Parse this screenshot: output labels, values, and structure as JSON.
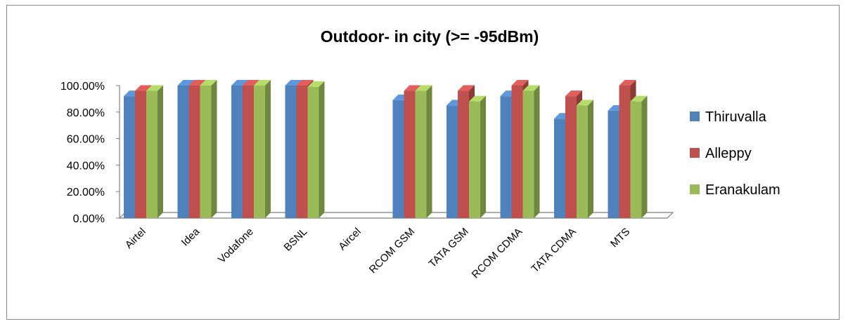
{
  "chart_data": {
    "type": "bar",
    "title": "Outdoor- in city (>= -95dBm)",
    "xlabel": "",
    "ylabel": "",
    "ylim": [
      0,
      1
    ],
    "yticks": [
      "0.00%",
      "20.00%",
      "40.00%",
      "60.00%",
      "80.00%",
      "100.00%"
    ],
    "categories": [
      "Airtel",
      "Idea",
      "Vodafone",
      "BSNL",
      "Aircel",
      "RCOM GSM",
      "TATA GSM",
      "RCOM CDMA",
      "TATA CDMA",
      "MTS"
    ],
    "series": [
      {
        "name": "Thiruvalla",
        "color": "#4f81bd",
        "values": [
          0.92,
          1.0,
          1.0,
          1.0,
          0,
          0.89,
          0.85,
          0.92,
          0.75,
          0.81
        ]
      },
      {
        "name": "Alleppy",
        "color": "#c0504d",
        "values": [
          0.96,
          1.0,
          1.0,
          1.0,
          0,
          0.96,
          0.96,
          1.0,
          0.92,
          1.0
        ]
      },
      {
        "name": "Eranakulam",
        "color": "#9bbb59",
        "values": [
          0.96,
          1.0,
          1.0,
          0.99,
          0,
          0.96,
          0.88,
          0.96,
          0.85,
          0.88
        ]
      }
    ],
    "legend_position": "right",
    "grid": false,
    "style": "3d-clustered-column"
  }
}
